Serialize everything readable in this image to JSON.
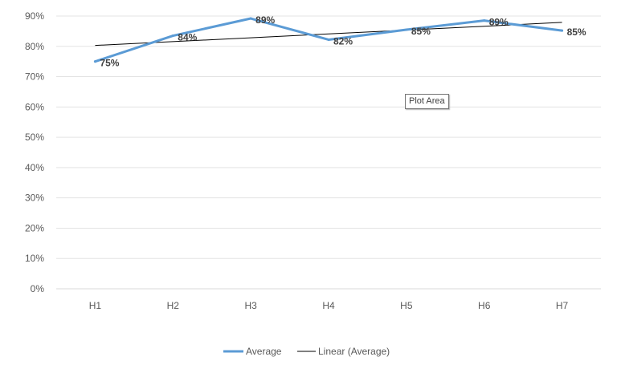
{
  "chart_data": {
    "type": "line",
    "categories": [
      "H1",
      "H2",
      "H3",
      "H4",
      "H5",
      "H6",
      "H7"
    ],
    "series": [
      {
        "name": "Average",
        "values": [
          0.75,
          0.835,
          0.892,
          0.822,
          0.855,
          0.885,
          0.852
        ],
        "labels": [
          "75%",
          "84%",
          "89%",
          "82%",
          "85%",
          "89%",
          "85%"
        ],
        "color": "#5b9bd5"
      },
      {
        "name": "Linear (Average)",
        "kind": "trendline",
        "start": 0.803,
        "end": 0.879,
        "color": "#000000"
      }
    ],
    "yticks": [
      "0%",
      "10%",
      "20%",
      "30%",
      "40%",
      "50%",
      "60%",
      "70%",
      "80%",
      "90%"
    ],
    "ylim": [
      0,
      0.9
    ],
    "grid": true,
    "legend_position": "bottom"
  },
  "tooltip": {
    "text": "Plot Area"
  }
}
